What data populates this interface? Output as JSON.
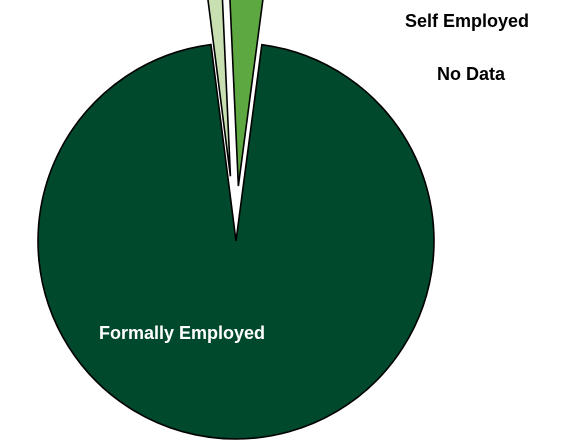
{
  "chart_data": {
    "type": "pie",
    "title": "",
    "slices": [
      {
        "label": "Formally Employed",
        "value": 95.9,
        "color": "#00492c"
      },
      {
        "label": "Self Employed",
        "value": 1.3,
        "color": "#c7dfb1"
      },
      {
        "label": "No Data",
        "value": 2.8,
        "color": "#5ea841"
      }
    ],
    "exploded": [
      "Self Employed",
      "No Data"
    ],
    "label_colors": {
      "inside": "#ffffff",
      "outside": "#000000"
    },
    "legend": "none",
    "grid": false
  }
}
